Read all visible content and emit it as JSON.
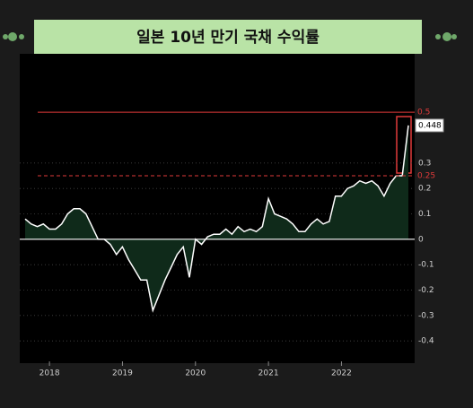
{
  "chart_data": {
    "type": "line",
    "title": "일본 10년 만기 국채 수익률",
    "categories": [
      null,
      null,
      null,
      null,
      "2018",
      null,
      null,
      null,
      null,
      null,
      null,
      null,
      null,
      null,
      null,
      null,
      "2019",
      null,
      null,
      null,
      null,
      null,
      null,
      null,
      null,
      null,
      null,
      null,
      "2020",
      null,
      null,
      null,
      null,
      null,
      null,
      null,
      null,
      null,
      null,
      null,
      "2021",
      null,
      null,
      null,
      null,
      null,
      null,
      null,
      null,
      null,
      null,
      null,
      "2022",
      null,
      null,
      null,
      null,
      null,
      null,
      null,
      null,
      null,
      null,
      null
    ],
    "series": [
      {
        "color": "#ffffff",
        "fill": "#0f2a1a",
        "values": [
          0.08,
          0.06,
          0.05,
          0.06,
          0.04,
          0.04,
          0.06,
          0.1,
          0.12,
          0.12,
          0.1,
          0.05,
          0.0,
          0.0,
          -0.02,
          -0.06,
          -0.03,
          -0.08,
          -0.12,
          -0.16,
          -0.16,
          -0.28,
          -0.22,
          -0.16,
          -0.11,
          -0.06,
          -0.03,
          -0.15,
          0.0,
          -0.02,
          0.01,
          0.02,
          0.02,
          0.04,
          0.02,
          0.05,
          0.03,
          0.04,
          0.03,
          0.05,
          0.16,
          0.1,
          0.09,
          0.08,
          0.06,
          0.03,
          0.03,
          0.06,
          0.08,
          0.06,
          0.07,
          0.17,
          0.17,
          0.2,
          0.21,
          0.23,
          0.22,
          0.23,
          0.21,
          0.17,
          0.22,
          0.25,
          0.25,
          0.448
        ]
      }
    ],
    "ylim": [
      -0.47,
      0.73
    ],
    "yticks": [
      0.3,
      0.2,
      0.1,
      0,
      -0.1,
      -0.2,
      -0.3,
      -0.4
    ],
    "grid": true,
    "reference_lines": [
      {
        "value": 0.5,
        "color": "#e03a3a",
        "dashed": false
      },
      {
        "value": 0.25,
        "color": "#e03a3a",
        "dashed": true
      }
    ]
  }
}
